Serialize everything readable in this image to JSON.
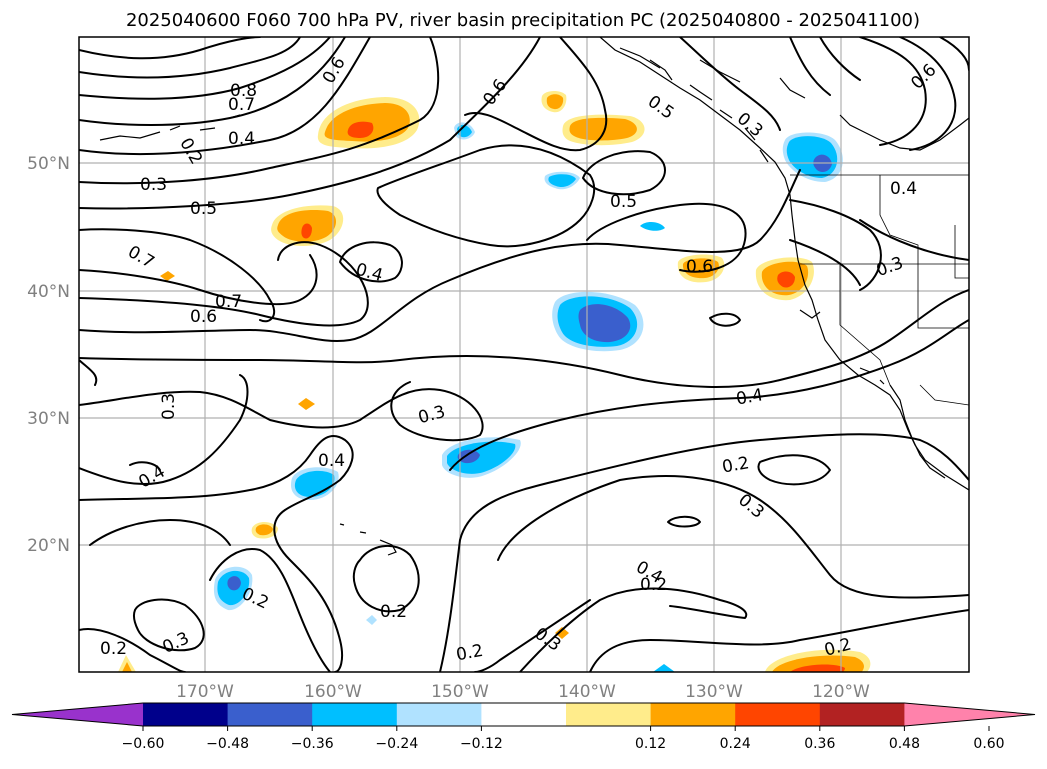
{
  "title": "2025040600 F060 700 hPa PV, river basin precipitation PC (2025040800 - 2025041100)",
  "lat_labels": [
    "50°N",
    "40°N",
    "30°N",
    "20°N"
  ],
  "lon_labels": [
    "170°W",
    "160°W",
    "150°W",
    "140°W",
    "130°W",
    "120°W"
  ],
  "contour_labels": [
    {
      "text": "0.8"
    },
    {
      "text": "0.7"
    },
    {
      "text": "0.6"
    },
    {
      "text": "0.4"
    },
    {
      "text": "0.2"
    },
    {
      "text": "0.3"
    },
    {
      "text": "0.5"
    },
    {
      "text": "0.7"
    },
    {
      "text": "0.4"
    },
    {
      "text": "0.7"
    },
    {
      "text": "0.6"
    },
    {
      "text": "0.6"
    },
    {
      "text": "0.5"
    },
    {
      "text": "0.5"
    },
    {
      "text": "0.3"
    },
    {
      "text": "0.6"
    },
    {
      "text": "0.6"
    },
    {
      "text": "0.4"
    },
    {
      "text": "0.3"
    },
    {
      "text": "0.3"
    },
    {
      "text": "0.3"
    },
    {
      "text": "0.4"
    },
    {
      "text": "0.4"
    },
    {
      "text": "0.4"
    },
    {
      "text": "0.2"
    },
    {
      "text": "0.3"
    },
    {
      "text": "0.2"
    },
    {
      "text": "0.2"
    },
    {
      "text": "0.4"
    },
    {
      "text": "0.2"
    },
    {
      "text": "0.3"
    },
    {
      "text": "0.2"
    },
    {
      "text": "0.2"
    },
    {
      "text": "0.3"
    },
    {
      "text": "0.2"
    }
  ],
  "colorbar": {
    "ticks": [
      "−0.60",
      "−0.48",
      "−0.36",
      "−0.24",
      "−0.12",
      "0.12",
      "0.24",
      "0.36",
      "0.48",
      "0.60"
    ],
    "colors": [
      "#9932cc",
      "#00008b",
      "#3a5fcd",
      "#00bfff",
      "#b0e2ff",
      "#ffffff",
      "#ffec8b",
      "#ffa500",
      "#ff4500",
      "#b22222",
      "#ff82ab"
    ]
  },
  "colors": {
    "neg_light": "#b0e2ff",
    "neg_mid": "#00bfff",
    "neg_dark": "#3a5fcd",
    "pos_light": "#ffec8b",
    "pos_mid": "#ffa500",
    "pos_dark": "#ff4500"
  }
}
